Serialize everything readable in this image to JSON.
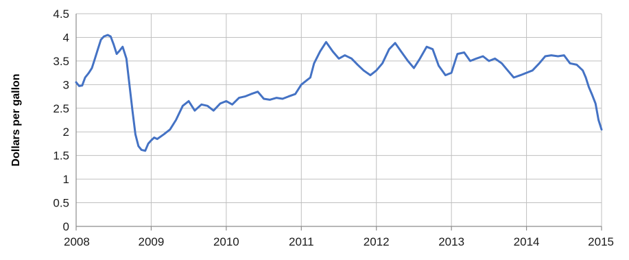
{
  "chart_data": {
    "type": "line",
    "title": "",
    "xlabel": "",
    "ylabel": "Dollars per gallon",
    "xlim": [
      2008,
      2015
    ],
    "ylim": [
      0,
      4.5
    ],
    "x_ticks": [
      "2008",
      "2009",
      "2010",
      "2011",
      "2012",
      "2013",
      "2014",
      "2015"
    ],
    "y_ticks": [
      "0",
      "0.5",
      "1",
      "1.5",
      "2",
      "2.5",
      "3",
      "3.5",
      "4",
      "4.5"
    ],
    "grid": true,
    "legend": "none",
    "series": [
      {
        "color": "#4472c4",
        "x": [
          2008.0,
          2008.04,
          2008.08,
          2008.12,
          2008.17,
          2008.21,
          2008.25,
          2008.29,
          2008.33,
          2008.37,
          2008.42,
          2008.46,
          2008.5,
          2008.54,
          2008.58,
          2008.62,
          2008.67,
          2008.71,
          2008.75,
          2008.79,
          2008.83,
          2008.87,
          2008.92,
          2008.96,
          2009.0,
          2009.04,
          2009.08,
          2009.17,
          2009.25,
          2009.33,
          2009.42,
          2009.5,
          2009.58,
          2009.67,
          2009.75,
          2009.83,
          2009.92,
          2010.0,
          2010.08,
          2010.17,
          2010.25,
          2010.33,
          2010.42,
          2010.5,
          2010.58,
          2010.67,
          2010.75,
          2010.83,
          2010.92,
          2011.0,
          2011.08,
          2011.12,
          2011.17,
          2011.25,
          2011.33,
          2011.42,
          2011.5,
          2011.58,
          2011.67,
          2011.75,
          2011.83,
          2011.92,
          2012.0,
          2012.08,
          2012.17,
          2012.25,
          2012.33,
          2012.42,
          2012.5,
          2012.58,
          2012.67,
          2012.75,
          2012.83,
          2012.92,
          2013.0,
          2013.08,
          2013.17,
          2013.25,
          2013.33,
          2013.42,
          2013.5,
          2013.58,
          2013.67,
          2013.75,
          2013.83,
          2013.92,
          2014.0,
          2014.08,
          2014.17,
          2014.25,
          2014.33,
          2014.42,
          2014.5,
          2014.58,
          2014.67,
          2014.75,
          2014.79,
          2014.83,
          2014.87,
          2014.92,
          2014.96,
          2015.0
        ],
        "y": [
          3.05,
          2.97,
          2.98,
          3.15,
          3.25,
          3.35,
          3.55,
          3.75,
          3.95,
          4.02,
          4.05,
          4.02,
          3.85,
          3.65,
          3.72,
          3.8,
          3.55,
          3.0,
          2.45,
          1.95,
          1.7,
          1.62,
          1.6,
          1.75,
          1.82,
          1.88,
          1.85,
          1.95,
          2.05,
          2.25,
          2.55,
          2.65,
          2.45,
          2.58,
          2.55,
          2.45,
          2.6,
          2.65,
          2.58,
          2.72,
          2.75,
          2.8,
          2.85,
          2.7,
          2.68,
          2.72,
          2.7,
          2.75,
          2.8,
          3.0,
          3.1,
          3.15,
          3.45,
          3.7,
          3.9,
          3.7,
          3.55,
          3.62,
          3.55,
          3.42,
          3.3,
          3.2,
          3.3,
          3.45,
          3.75,
          3.88,
          3.7,
          3.5,
          3.35,
          3.55,
          3.8,
          3.75,
          3.4,
          3.2,
          3.25,
          3.65,
          3.68,
          3.5,
          3.55,
          3.6,
          3.5,
          3.55,
          3.45,
          3.3,
          3.15,
          3.2,
          3.25,
          3.3,
          3.45,
          3.6,
          3.62,
          3.6,
          3.62,
          3.45,
          3.42,
          3.3,
          3.15,
          2.95,
          2.8,
          2.6,
          2.25,
          2.05
        ]
      }
    ]
  }
}
